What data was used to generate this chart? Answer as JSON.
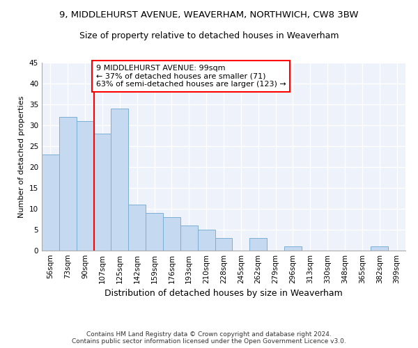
{
  "title_line1": "9, MIDDLEHURST AVENUE, WEAVERHAM, NORTHWICH, CW8 3BW",
  "title_line2": "Size of property relative to detached houses in Weaverham",
  "xlabel": "Distribution of detached houses by size in Weaverham",
  "ylabel": "Number of detached properties",
  "categories": [
    "56sqm",
    "73sqm",
    "90sqm",
    "107sqm",
    "125sqm",
    "142sqm",
    "159sqm",
    "176sqm",
    "193sqm",
    "210sqm",
    "228sqm",
    "245sqm",
    "262sqm",
    "279sqm",
    "296sqm",
    "313sqm",
    "330sqm",
    "348sqm",
    "365sqm",
    "382sqm",
    "399sqm"
  ],
  "values": [
    23,
    32,
    31,
    28,
    34,
    11,
    9,
    8,
    6,
    5,
    3,
    0,
    3,
    0,
    1,
    0,
    0,
    0,
    0,
    1,
    0
  ],
  "bar_color": "#c5d9f0",
  "bar_edge_color": "#7bafd4",
  "vline_x": 2.5,
  "vline_color": "red",
  "annotation_text": "9 MIDDLEHURST AVENUE: 99sqm\n← 37% of detached houses are smaller (71)\n63% of semi-detached houses are larger (123) →",
  "annotation_box_color": "white",
  "annotation_box_edge": "red",
  "ylim": [
    0,
    45
  ],
  "yticks": [
    0,
    5,
    10,
    15,
    20,
    25,
    30,
    35,
    40,
    45
  ],
  "background_color": "#eef2fa",
  "grid_color": "#ffffff",
  "footer_text": "Contains HM Land Registry data © Crown copyright and database right 2024.\nContains public sector information licensed under the Open Government Licence v3.0.",
  "title_fontsize": 9.5,
  "subtitle_fontsize": 9,
  "xlabel_fontsize": 9,
  "ylabel_fontsize": 8,
  "tick_fontsize": 7.5,
  "annotation_fontsize": 8,
  "footer_fontsize": 6.5
}
